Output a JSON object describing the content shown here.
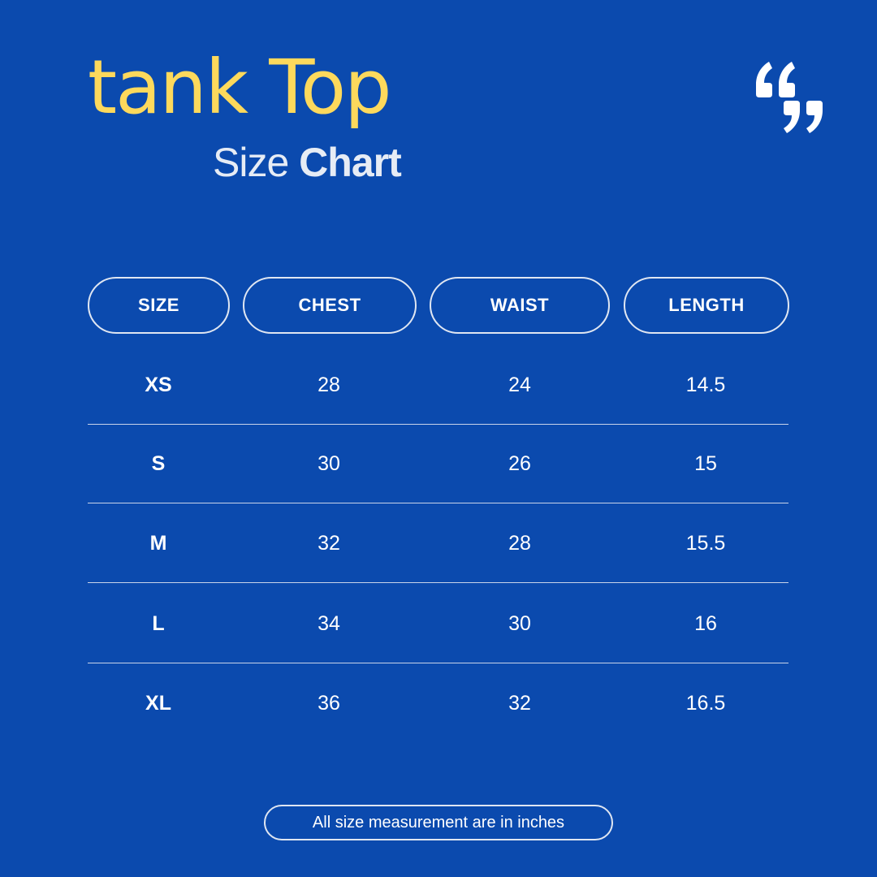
{
  "title": "tank Top",
  "subtitle": {
    "light": "Size",
    "bold": "Chart"
  },
  "quote_icon": "quotation-marks-icon",
  "colors": {
    "background": "#0b4aae",
    "title": "#fdd95c",
    "text": "#ffffff"
  },
  "table": {
    "headers": [
      "SIZE",
      "CHEST",
      "WAIST",
      "LENGTH"
    ],
    "rows": [
      [
        "XS",
        "28",
        "24",
        "14.5"
      ],
      [
        "S",
        "30",
        "26",
        "15"
      ],
      [
        "M",
        "32",
        "28",
        "15.5"
      ],
      [
        "L",
        "34",
        "30",
        "16"
      ],
      [
        "XL",
        "36",
        "32",
        "16.5"
      ]
    ]
  },
  "note": "All size measurement are in inches"
}
